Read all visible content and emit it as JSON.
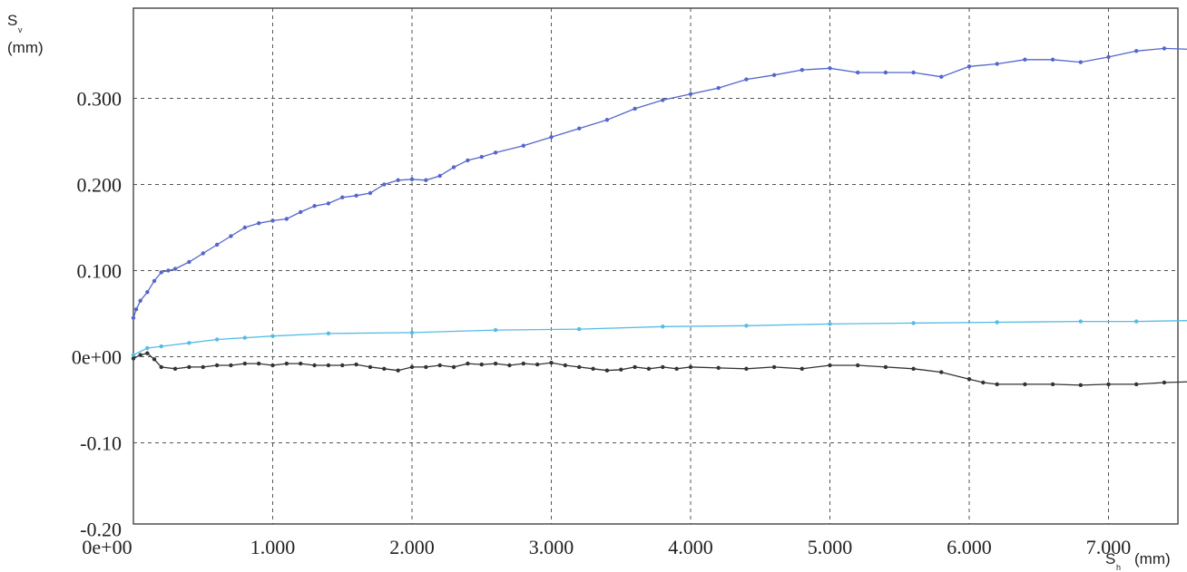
{
  "chart_data": {
    "type": "line",
    "ylabel_symbol": "S",
    "ylabel_subscript": "v",
    "ylabel_unit": "(mm)",
    "xlabel_symbol": "S",
    "xlabel_subscript": "h",
    "xlabel_unit": "(mm)",
    "xlim": [
      0,
      7.6
    ],
    "ylim": [
      -0.2,
      0.4
    ],
    "grid": true,
    "x_ticks": [
      {
        "value": 0,
        "label": "0e+00"
      },
      {
        "value": 1,
        "label": "1.000"
      },
      {
        "value": 2,
        "label": "2.000"
      },
      {
        "value": 3,
        "label": "3.000"
      },
      {
        "value": 4,
        "label": "4.000"
      },
      {
        "value": 5,
        "label": "5.000"
      },
      {
        "value": 6,
        "label": "6.000"
      },
      {
        "value": 7,
        "label": "7.000"
      }
    ],
    "y_ticks": [
      {
        "value": -0.2,
        "label": "-0.20"
      },
      {
        "value": -0.1,
        "label": "-0.10"
      },
      {
        "value": 0,
        "label": "0e+00"
      },
      {
        "value": 0.1,
        "label": "0.100"
      },
      {
        "value": 0.2,
        "label": "0.200"
      },
      {
        "value": 0.3,
        "label": "0.300"
      }
    ],
    "series": [
      {
        "color": "#5566cc",
        "x": [
          0,
          0.02,
          0.05,
          0.1,
          0.15,
          0.2,
          0.25,
          0.3,
          0.4,
          0.5,
          0.6,
          0.7,
          0.8,
          0.9,
          1.0,
          1.1,
          1.2,
          1.3,
          1.4,
          1.5,
          1.6,
          1.7,
          1.8,
          1.9,
          2.0,
          2.1,
          2.2,
          2.3,
          2.4,
          2.5,
          2.6,
          2.8,
          3.0,
          3.2,
          3.4,
          3.6,
          3.8,
          4.0,
          4.2,
          4.4,
          4.6,
          4.8,
          5.0,
          5.2,
          5.4,
          5.6,
          5.8,
          6.0,
          6.2,
          6.4,
          6.6,
          6.8,
          7.0,
          7.2,
          7.4,
          7.6
        ],
        "y": [
          0.045,
          0.055,
          0.065,
          0.075,
          0.088,
          0.098,
          0.1,
          0.102,
          0.11,
          0.12,
          0.13,
          0.14,
          0.15,
          0.155,
          0.158,
          0.16,
          0.168,
          0.175,
          0.178,
          0.185,
          0.187,
          0.19,
          0.2,
          0.205,
          0.206,
          0.205,
          0.21,
          0.22,
          0.228,
          0.232,
          0.237,
          0.245,
          0.255,
          0.265,
          0.275,
          0.288,
          0.298,
          0.305,
          0.312,
          0.322,
          0.327,
          0.333,
          0.335,
          0.33,
          0.33,
          0.33,
          0.325,
          0.337,
          0.34,
          0.345,
          0.345,
          0.342,
          0.348,
          0.355,
          0.358,
          0.357
        ]
      },
      {
        "color": "#55bbe6",
        "x": [
          0,
          0.1,
          0.2,
          0.4,
          0.6,
          0.8,
          1.0,
          1.4,
          2.0,
          2.6,
          3.2,
          3.8,
          4.4,
          5.0,
          5.6,
          6.2,
          6.8,
          7.2,
          7.6
        ],
        "y": [
          0.002,
          0.01,
          0.012,
          0.016,
          0.02,
          0.022,
          0.024,
          0.027,
          0.028,
          0.031,
          0.032,
          0.035,
          0.036,
          0.038,
          0.039,
          0.04,
          0.041,
          0.041,
          0.042
        ]
      },
      {
        "color": "#333333",
        "x": [
          0,
          0.05,
          0.1,
          0.15,
          0.2,
          0.3,
          0.4,
          0.5,
          0.6,
          0.7,
          0.8,
          0.9,
          1.0,
          1.1,
          1.2,
          1.3,
          1.4,
          1.5,
          1.6,
          1.7,
          1.8,
          1.9,
          2.0,
          2.1,
          2.2,
          2.3,
          2.4,
          2.5,
          2.6,
          2.7,
          2.8,
          2.9,
          3.0,
          3.1,
          3.2,
          3.3,
          3.4,
          3.5,
          3.6,
          3.7,
          3.8,
          3.9,
          4.0,
          4.2,
          4.4,
          4.6,
          4.8,
          5.0,
          5.2,
          5.4,
          5.6,
          5.8,
          6.0,
          6.1,
          6.2,
          6.4,
          6.6,
          6.8,
          7.0,
          7.2,
          7.4,
          7.6
        ],
        "y": [
          -0.002,
          0.002,
          0.004,
          -0.003,
          -0.012,
          -0.014,
          -0.012,
          -0.012,
          -0.01,
          -0.01,
          -0.008,
          -0.008,
          -0.01,
          -0.008,
          -0.008,
          -0.01,
          -0.01,
          -0.01,
          -0.009,
          -0.012,
          -0.014,
          -0.016,
          -0.012,
          -0.012,
          -0.01,
          -0.012,
          -0.008,
          -0.009,
          -0.008,
          -0.01,
          -0.008,
          -0.009,
          -0.007,
          -0.01,
          -0.012,
          -0.014,
          -0.016,
          -0.015,
          -0.012,
          -0.014,
          -0.012,
          -0.014,
          -0.012,
          -0.013,
          -0.014,
          -0.012,
          -0.014,
          -0.01,
          -0.01,
          -0.012,
          -0.014,
          -0.018,
          -0.026,
          -0.03,
          -0.032,
          -0.032,
          -0.032,
          -0.033,
          -0.032,
          -0.032,
          -0.03,
          -0.029
        ]
      }
    ]
  }
}
